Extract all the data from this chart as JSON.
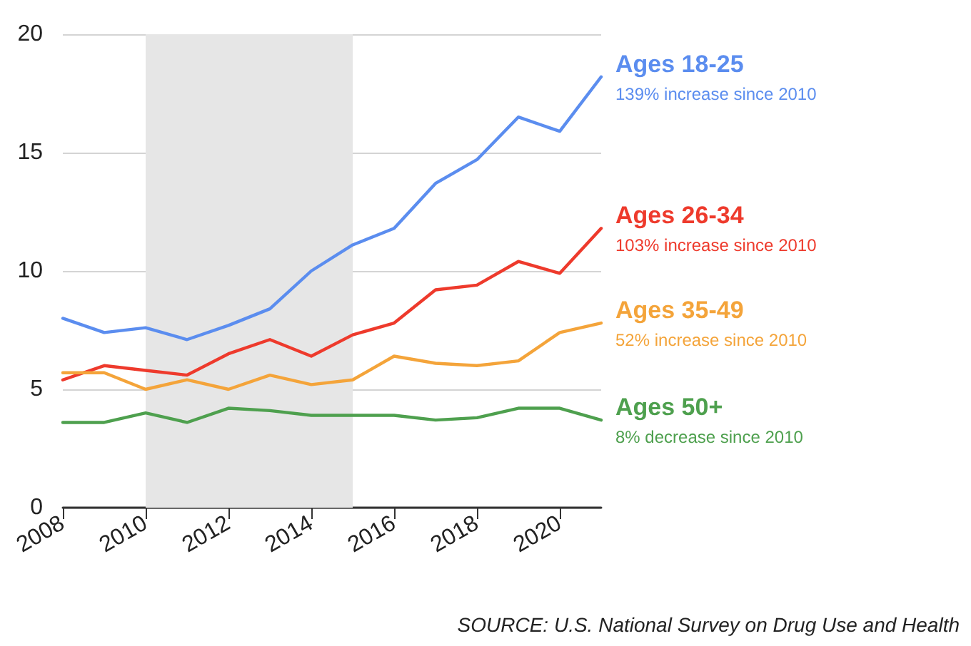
{
  "chart_data": {
    "type": "line",
    "x": [
      2008,
      2009,
      2010,
      2011,
      2012,
      2013,
      2014,
      2015,
      2016,
      2017,
      2018,
      2019,
      2020,
      2021
    ],
    "series": [
      {
        "name": "Ages 18-25",
        "color": "#5b8def",
        "values": [
          8.0,
          7.4,
          7.6,
          7.1,
          7.7,
          8.4,
          10.0,
          11.1,
          11.8,
          13.7,
          14.7,
          16.5,
          15.9,
          18.2
        ]
      },
      {
        "name": "Ages 26-34",
        "color": "#ee3a2c",
        "values": [
          5.4,
          6.0,
          5.8,
          5.6,
          6.5,
          7.1,
          6.4,
          7.3,
          7.8,
          9.2,
          9.4,
          10.4,
          9.9,
          11.8
        ]
      },
      {
        "name": "Ages 35-49",
        "color": "#f4a43a",
        "values": [
          5.7,
          5.7,
          5.0,
          5.4,
          5.0,
          5.6,
          5.2,
          5.4,
          6.4,
          6.1,
          6.0,
          6.2,
          7.4,
          7.8
        ]
      },
      {
        "name": "Ages 50+",
        "color": "#4ea04e",
        "values": [
          3.6,
          3.6,
          4.0,
          3.6,
          4.2,
          4.1,
          3.9,
          3.9,
          3.9,
          3.7,
          3.8,
          4.2,
          4.2,
          3.7
        ]
      }
    ],
    "annotations": [
      "139% increase since 2010",
      "103% increase since 2010",
      "52% increase since 2010",
      "8% decrease since 2010",
      "SOURCE: U.S. National Survey on Drug Use and Health"
    ],
    "bands": [
      {
        "axis": "x",
        "from": 2010,
        "to": 2015,
        "color": "#e6e6e6"
      }
    ],
    "xlim": [
      2008,
      2021
    ],
    "xticks": [
      2008,
      2010,
      2012,
      2014,
      2016,
      2018,
      2020
    ],
    "ylim": [
      0,
      20
    ],
    "yticks": [
      0,
      5,
      10,
      15,
      20
    ],
    "grid": "y",
    "legend": false,
    "marker": "none",
    "line_style": "solid"
  }
}
